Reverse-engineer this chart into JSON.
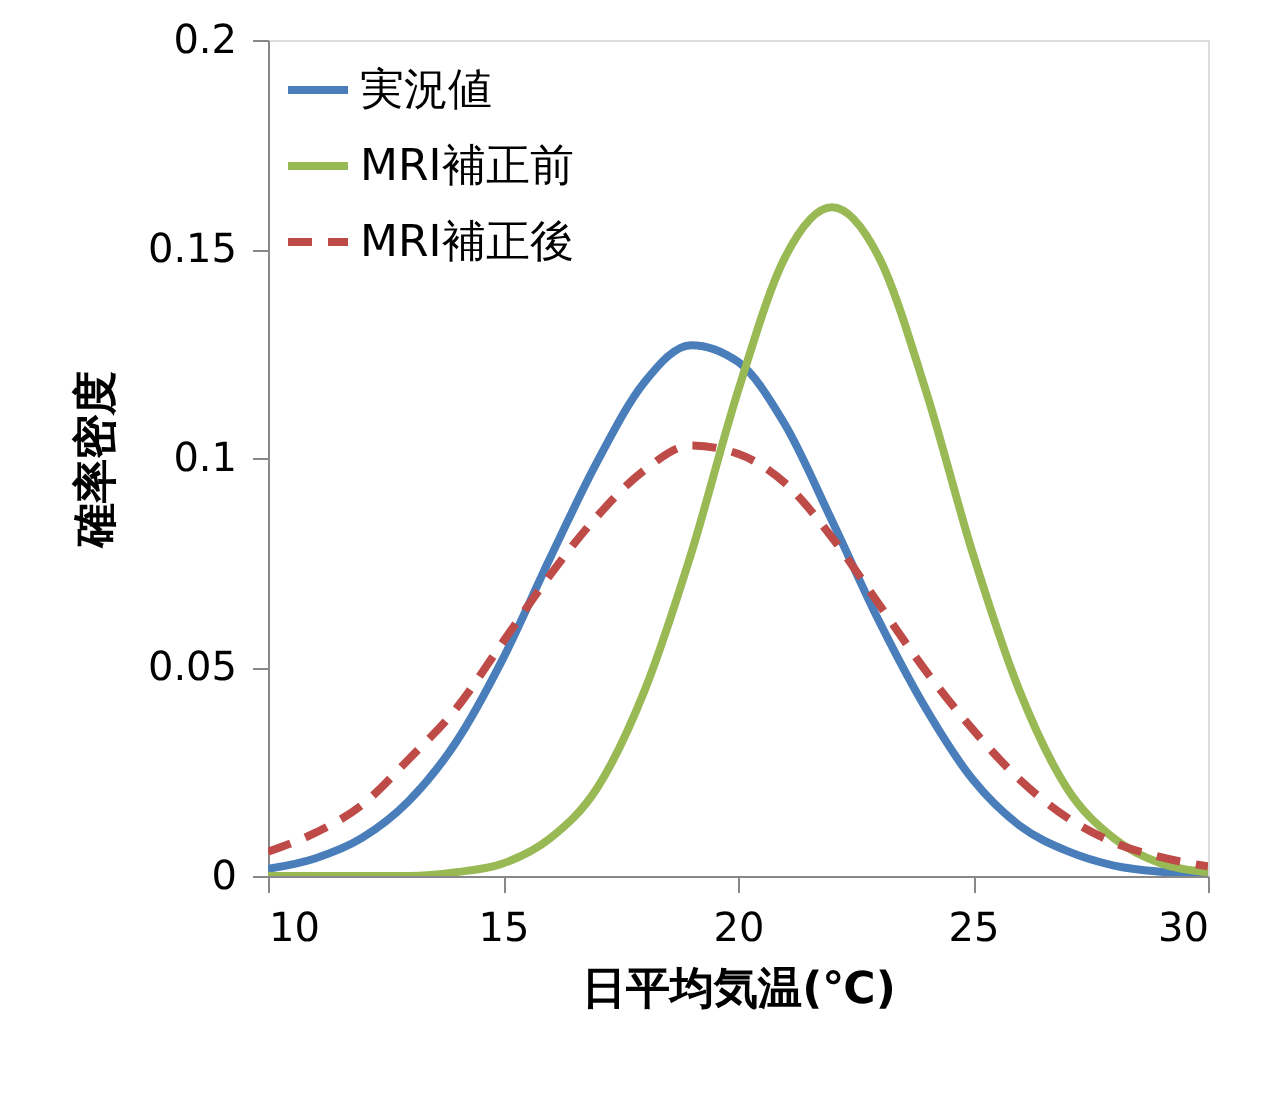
{
  "chart_data": {
    "type": "line",
    "xlabel": "日平均気温(℃)",
    "ylabel": "確率密度",
    "x": [
      10,
      11,
      12,
      13,
      14,
      15,
      16,
      17,
      18,
      19,
      20,
      21,
      22,
      23,
      24,
      25,
      26,
      27,
      28,
      29,
      30
    ],
    "xlim": [
      10,
      30
    ],
    "xticks": [
      10,
      15,
      20,
      25,
      30
    ],
    "ylim": [
      0,
      0.2
    ],
    "yticks": [
      0,
      0.05,
      0.1,
      0.15,
      0.2
    ],
    "grid": false,
    "legend": "top left",
    "marker": "none",
    "series": [
      {
        "name": "実況値",
        "color": "#4a7ebb",
        "line_style": "solid",
        "values": [
          0.0017,
          0.0042,
          0.0091,
          0.018,
          0.032,
          0.052,
          0.076,
          0.099,
          0.118,
          0.127,
          0.123,
          0.108,
          0.085,
          0.061,
          0.04,
          0.023,
          0.012,
          0.006,
          0.0025,
          0.001,
          0.0004
        ]
      },
      {
        "name": "MRI補正前",
        "color": "#98b954",
        "line_style": "solid",
        "values": [
          0,
          0,
          0,
          0,
          0.0009,
          0.003,
          0.009,
          0.021,
          0.044,
          0.077,
          0.116,
          0.148,
          0.16,
          0.148,
          0.116,
          0.077,
          0.044,
          0.021,
          0.009,
          0.003,
          0.0009
        ]
      },
      {
        "name": "MRI補正後",
        "color": "#be4b48",
        "line_style": "dashed",
        "values": [
          0.0058,
          0.0103,
          0.017,
          0.028,
          0.04,
          0.056,
          0.072,
          0.086,
          0.097,
          0.103,
          0.101,
          0.094,
          0.081,
          0.065,
          0.049,
          0.035,
          0.023,
          0.014,
          0.008,
          0.0045,
          0.0023
        ]
      }
    ]
  }
}
